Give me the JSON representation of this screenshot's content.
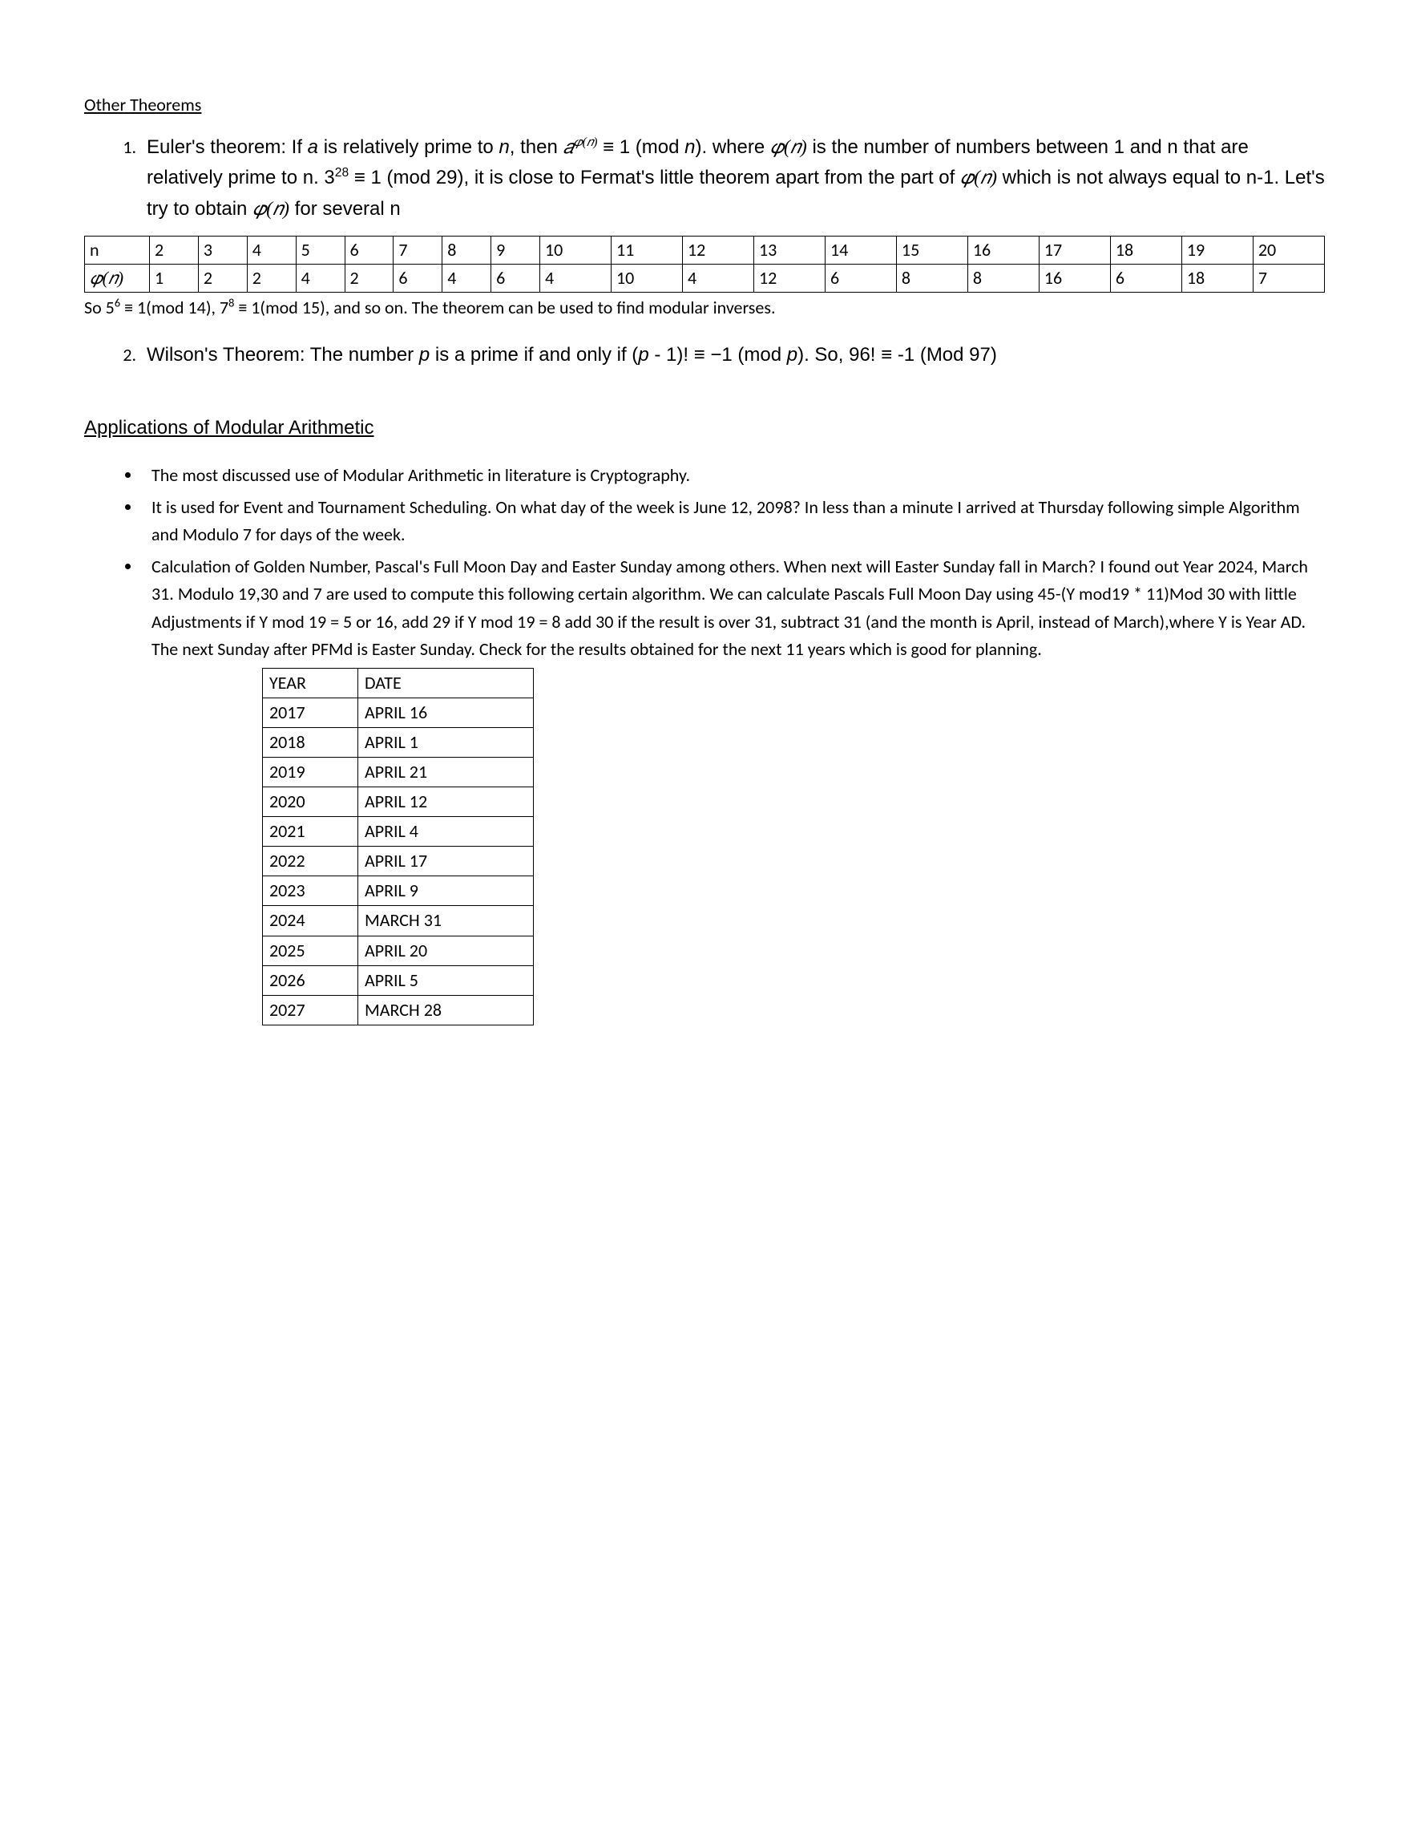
{
  "headings": {
    "other_theorems": "Other Theorems",
    "applications": "Applications of Modular Arithmetic"
  },
  "theorems": {
    "euler": {
      "prefix": "Euler's theorem: If ",
      "a": "a",
      "mid1": " is relatively prime to ",
      "n": "n",
      "mid2": ", then ",
      "expr_base": "𝑎",
      "expr_exp": "𝜑(𝑛)",
      "congr": " ≡ 1 (mod ",
      "mid3": "). where ",
      "phi_n": "𝜑(𝑛)",
      "line2a": " is the number of numbers between 1 and n that are relatively prime to n. 3",
      "exp28": "28",
      "line2b": " ≡  1 (mod 29), it is close to Fermat's little theorem apart from the part of ",
      "line2c": " which is not always equal to n-1. Let's try to obtain ",
      "line2d": " for several  n"
    },
    "wilson": {
      "prefix": "Wilson's Theorem: The number ",
      "p": "p",
      "mid1": " is a prime if and only if (",
      "mid2": " - 1)!  ≡  −1 (mod ",
      "mid3": "). So, 96! ≡ -1 (Mod 97)"
    }
  },
  "phi_table": {
    "row1_label": "n",
    "row2_label": "𝜑(𝑛)",
    "n_values": [
      "2",
      "3",
      "4",
      "5",
      "6",
      "7",
      "8",
      "9",
      "10",
      "11",
      "12",
      "13",
      "14",
      "15",
      "16",
      "17",
      "18",
      "19",
      "20"
    ],
    "phi_values": [
      "1",
      "2",
      "2",
      "4",
      "2",
      "6",
      "4",
      "6",
      "4",
      "10",
      "4",
      "12",
      "6",
      "8",
      "8",
      "16",
      "6",
      "18",
      "7"
    ]
  },
  "after_table": {
    "t1": "So 5",
    "e1": "6",
    "t2": " ≡ 1(mod 14), 7",
    "e2": "8",
    "t3": " ≡ 1(mod 15), and so on. The theorem can be used to find modular inverses."
  },
  "bullets": {
    "b1": "The most discussed use of Modular Arithmetic in literature is Cryptography.",
    "b2": "It is used for Event and Tournament Scheduling. On what day of the week  is June 12, 2098? In less than a minute I arrived at Thursday following simple Algorithm and Modulo 7 for days of the week.",
    "b3": "Calculation of Golden Number, Pascal's Full Moon Day and Easter Sunday among others. When next will Easter Sunday fall in March? I found out Year 2024, March 31. Modulo 19,30 and 7 are used to compute this following certain algorithm. We can calculate Pascals Full Moon Day using 45-(Y mod19 * 11)Mod 30 with little Adjustments if Y mod 19 = 5 or 16, add 29 if Y mod 19 = 8 add 30 if the result is over 31, subtract 31 (and the month is April, instead of March),where Y is Year AD. The next Sunday after PFMd is Easter Sunday. Check for the results obtained for the next 11 years which is good for planning."
  },
  "easter_table": {
    "header": [
      "YEAR",
      "DATE"
    ],
    "rows": [
      [
        "2017",
        "APRIL 16"
      ],
      [
        "2018",
        "APRIL 1"
      ],
      [
        "2019",
        "APRIL 21"
      ],
      [
        "2020",
        "APRIL 12"
      ],
      [
        "2021",
        "APRIL 4"
      ],
      [
        "2022",
        "APRIL 17"
      ],
      [
        "2023",
        "APRIL 9"
      ],
      [
        "2024",
        "MARCH 31"
      ],
      [
        "2025",
        "APRIL 20"
      ],
      [
        "2026",
        "APRIL 5"
      ],
      [
        "2027",
        "MARCH 28"
      ]
    ]
  }
}
